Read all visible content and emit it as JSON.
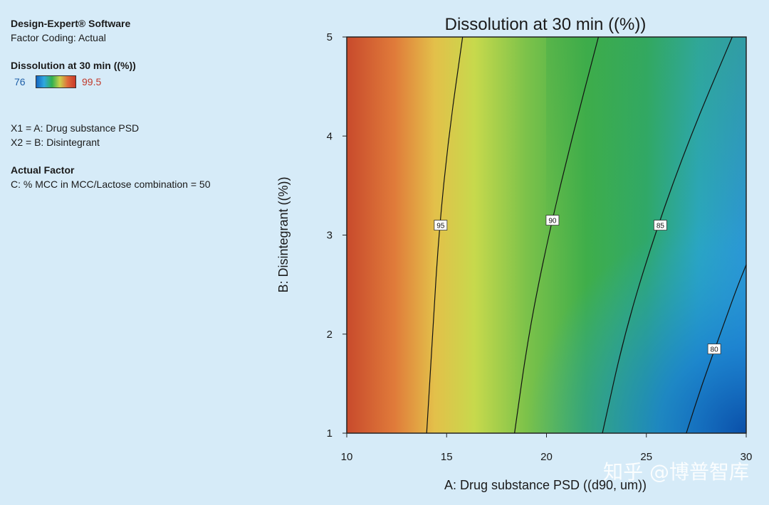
{
  "info": {
    "software": "Design-Expert® Software",
    "coding": "Factor Coding: Actual",
    "response_title": "Dissolution at 30 min ((%))",
    "legend_min": "76",
    "legend_max": "99.5",
    "x1": "X1 = A: Drug substance PSD",
    "x2": "X2 = B: Disintegrant",
    "actual_factor_title": "Actual Factor",
    "actual_factor": "C: % MCC in MCC/Lactose combination = 50"
  },
  "colors": {
    "low": "#1565c0",
    "mid": "#30b050",
    "high": "#c83a2a"
  },
  "watermark": "知乎 @博普智库",
  "chart_data": {
    "type": "contour",
    "title": "Dissolution at 30 min ((%))",
    "xlabel": "A: Drug substance PSD ((d90, um))",
    "ylabel": "B: Disintegrant ((%))",
    "xlim": [
      10,
      30
    ],
    "ylim": [
      1,
      5
    ],
    "x_ticks": [
      10,
      15,
      20,
      25,
      30
    ],
    "y_ticks": [
      1,
      2,
      3,
      4,
      5
    ],
    "color_range": [
      76,
      99.5
    ],
    "contours": [
      {
        "level": 95,
        "label": "95",
        "label_at": [
          14.7,
          3.1
        ],
        "points": [
          [
            14.0,
            1
          ],
          [
            14.3,
            2
          ],
          [
            14.6,
            3
          ],
          [
            15.1,
            4
          ],
          [
            15.8,
            5
          ]
        ]
      },
      {
        "level": 90,
        "label": "90",
        "label_at": [
          20.3,
          3.15
        ],
        "points": [
          [
            18.4,
            1
          ],
          [
            19.1,
            2
          ],
          [
            20.1,
            3
          ],
          [
            21.3,
            4
          ],
          [
            22.6,
            5
          ]
        ]
      },
      {
        "level": 85,
        "label": "85",
        "label_at": [
          25.7,
          3.1
        ],
        "points": [
          [
            22.8,
            1
          ],
          [
            23.9,
            2
          ],
          [
            25.4,
            3
          ],
          [
            27.2,
            4
          ],
          [
            29.3,
            5
          ]
        ]
      },
      {
        "level": 80,
        "label": "80",
        "label_at": [
          28.4,
          1.85
        ],
        "points": [
          [
            27.0,
            1
          ],
          [
            27.8,
            1.5
          ],
          [
            28.7,
            2.0
          ],
          [
            29.5,
            2.45
          ],
          [
            30.0,
            2.7
          ]
        ]
      }
    ]
  }
}
